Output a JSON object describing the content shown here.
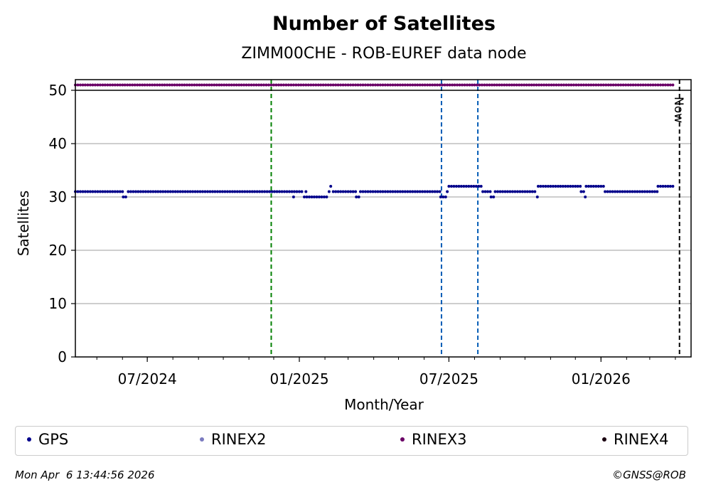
{
  "chart_data": {
    "type": "scatter",
    "title": "Number of Satellites",
    "subtitle": "ZIMM00CHE - ROB-EUREF data node",
    "xlabel": "Month/Year",
    "ylabel": "Satellites",
    "xlim": [
      "2024-04-05",
      "2026-04-20"
    ],
    "ylim": [
      0,
      52
    ],
    "y_ticks": [
      0,
      10,
      20,
      30,
      40,
      50
    ],
    "x_ticks": [
      {
        "date": "2024-07-01",
        "label": "07/2024"
      },
      {
        "date": "2025-01-01",
        "label": "01/2025"
      },
      {
        "date": "2025-07-01",
        "label": "07/2025"
      },
      {
        "date": "2026-01-01",
        "label": "01/2026"
      }
    ],
    "grid": "horizontal",
    "upper_band_y": 50,
    "now_date": "2026-04-06",
    "now_label": "Now",
    "vlines": [
      {
        "date": "2024-11-28",
        "color": "#008000"
      },
      {
        "date": "2025-06-22",
        "color": "#005bb5"
      },
      {
        "date": "2025-08-05",
        "color": "#005bb5"
      }
    ],
    "series": [
      {
        "name": "GPS",
        "color": "#00008b",
        "segments": [
          {
            "from": "2024-04-05",
            "to": "2024-06-01",
            "value": 31
          },
          {
            "from": "2024-06-02",
            "to": "2024-06-07",
            "value": 30
          },
          {
            "from": "2024-06-08",
            "to": "2024-12-24",
            "value": 31
          },
          {
            "from": "2024-12-25",
            "to": "2024-12-25",
            "value": 30
          },
          {
            "from": "2024-12-26",
            "to": "2025-01-06",
            "value": 31
          },
          {
            "from": "2025-01-07",
            "to": "2025-01-08",
            "value": 30
          },
          {
            "from": "2025-01-09",
            "to": "2025-01-09",
            "value": 31
          },
          {
            "from": "2025-01-10",
            "to": "2025-02-05",
            "value": 30
          },
          {
            "from": "2025-02-06",
            "to": "2025-02-07",
            "value": 31
          },
          {
            "from": "2025-02-08",
            "to": "2025-02-10",
            "value": 32
          },
          {
            "from": "2025-02-11",
            "to": "2025-03-10",
            "value": 31
          },
          {
            "from": "2025-03-11",
            "to": "2025-03-15",
            "value": 30
          },
          {
            "from": "2025-03-16",
            "to": "2025-06-20",
            "value": 31
          },
          {
            "from": "2025-06-21",
            "to": "2025-06-28",
            "value": 30
          },
          {
            "from": "2025-06-29",
            "to": "2025-06-30",
            "value": 31
          },
          {
            "from": "2025-07-01",
            "to": "2025-08-10",
            "value": 32
          },
          {
            "from": "2025-08-11",
            "to": "2025-08-20",
            "value": 31
          },
          {
            "from": "2025-08-21",
            "to": "2025-08-25",
            "value": 30
          },
          {
            "from": "2025-08-26",
            "to": "2025-10-15",
            "value": 31
          },
          {
            "from": "2025-10-16",
            "to": "2025-10-16",
            "value": 30
          },
          {
            "from": "2025-10-17",
            "to": "2025-12-07",
            "value": 32
          },
          {
            "from": "2025-12-08",
            "to": "2025-12-12",
            "value": 31
          },
          {
            "from": "2025-12-13",
            "to": "2025-12-13",
            "value": 30
          },
          {
            "from": "2025-12-14",
            "to": "2026-01-05",
            "value": 32
          },
          {
            "from": "2026-01-06",
            "to": "2026-03-10",
            "value": 31
          },
          {
            "from": "2026-03-11",
            "to": "2026-03-31",
            "value": 32
          }
        ]
      },
      {
        "name": "RINEX2",
        "color": "#7b7bc0",
        "segments": []
      },
      {
        "name": "RINEX3",
        "color": "#6a0066",
        "segments": [
          {
            "from": "2024-04-05",
            "to": "2026-03-31",
            "value": 51
          }
        ]
      },
      {
        "name": "RINEX4",
        "color": "#1a0010",
        "segments": []
      }
    ]
  },
  "footer": {
    "timestamp": "Mon Apr  6 13:44:56 2026",
    "copyright": "©GNSS@ROB"
  }
}
